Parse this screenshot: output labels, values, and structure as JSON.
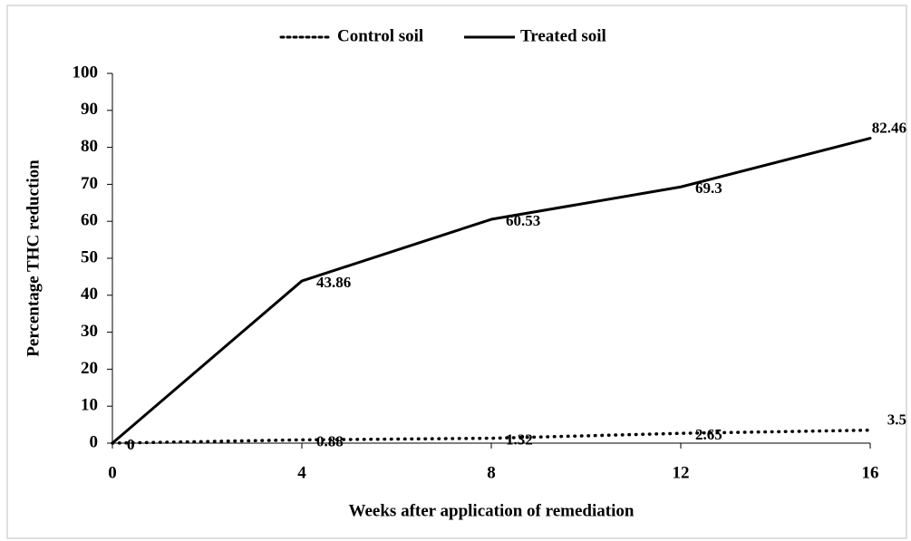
{
  "chart_data": {
    "type": "line",
    "x_label": "Weeks after application of remediation",
    "y_label": "Percentage THC reduction",
    "x": [
      0,
      4,
      8,
      12,
      16
    ],
    "series": [
      {
        "name": "Control soil",
        "color": "#000000",
        "dash": "dotted",
        "values": [
          0,
          0.88,
          1.32,
          2.65,
          3.5
        ]
      },
      {
        "name": "Treated soil",
        "color": "#000000",
        "dash": "solid",
        "values": [
          0,
          43.86,
          60.53,
          69.3,
          82.46
        ]
      }
    ],
    "xlim": [
      0,
      16
    ],
    "xticks": [
      0,
      4,
      8,
      12,
      16
    ],
    "ylim": [
      0,
      100
    ],
    "yticks": [
      0,
      10,
      20,
      30,
      40,
      50,
      60,
      70,
      80,
      90,
      100
    ],
    "grid": false,
    "legend": "top"
  }
}
